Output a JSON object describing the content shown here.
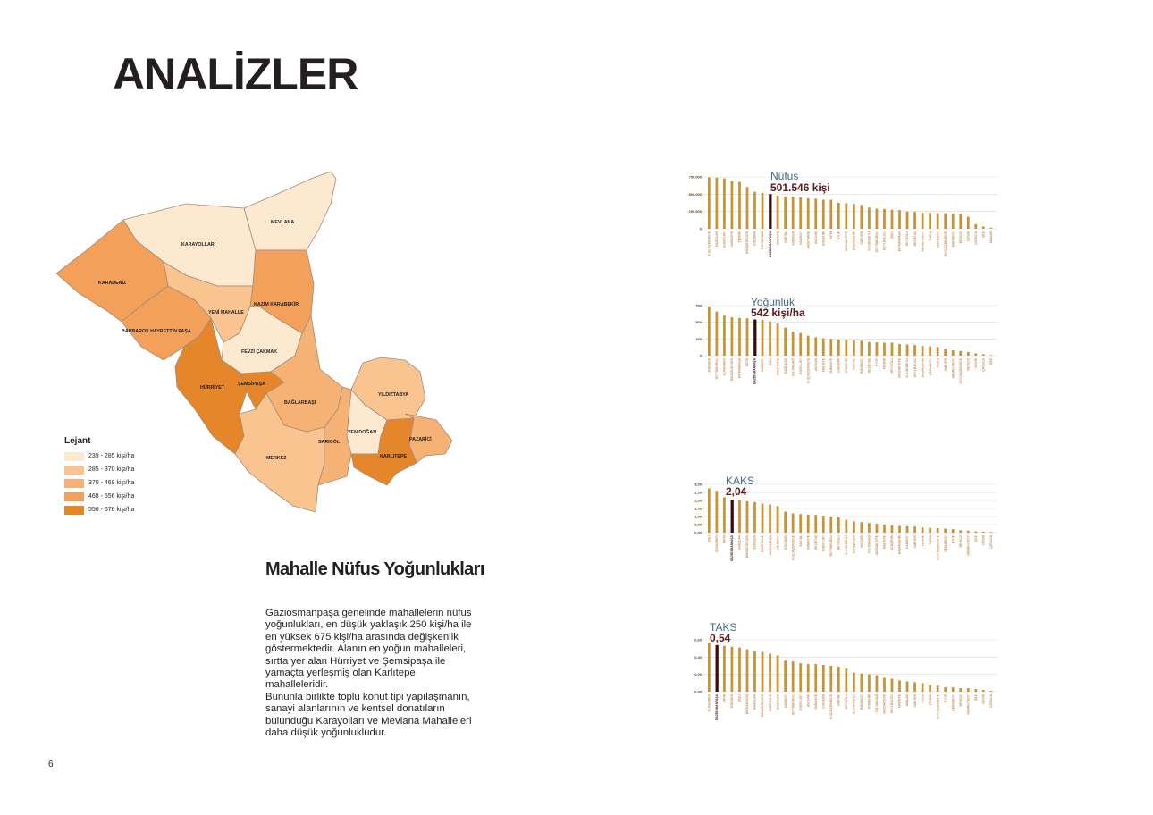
{
  "page": {
    "title": "ANALİZLER",
    "page_number": "6"
  },
  "text_section": {
    "heading": "Mahalle Nüfus Yoğunlukları",
    "paragraph1": "Gaziosmanpaşa genelinde mahallelerin nüfus yoğunlukları, en düşük yaklaşık 250 kişi/ha ile en yüksek 675 kişi/ha arasında değişkenlik göstermektedir. Alanın en yoğun mahalleleri, sırtta yer alan Hürriyet ve Şemsipaşa ile yamaçta yerleşmiş olan Karlıtepe mahalleleridir.",
    "paragraph2": "Bununla birlikte toplu konut tipi yapılaşmanın, sanayi alanlarının ve kentsel donatıların bulunduğu Karayolları ve Mevlana Mahalleleri daha düşük yoğunlukludur."
  },
  "map": {
    "districts": [
      {
        "label": "MEVLANA",
        "color": "#fde9d0"
      },
      {
        "label": "KARAYOLLARI",
        "color": "#fde9d0"
      },
      {
        "label": "KARADENİZ",
        "color": "#f3a15a"
      },
      {
        "label": "YENİ MAHALLE",
        "color": "#f9c48f"
      },
      {
        "label": "KAZIM KARABEKİR",
        "color": "#f3a15a"
      },
      {
        "label": "BARBAROS HAYRETTİN PAŞA",
        "color": "#f3a15a"
      },
      {
        "label": "FEVZİ ÇAKMAK",
        "color": "#fde9d0"
      },
      {
        "label": "HÜRRİYET",
        "color": "#e6862a"
      },
      {
        "label": "ŞEMSİPAŞA",
        "color": "#e6862a"
      },
      {
        "label": "BAĞLARBAŞI",
        "color": "#f6b274"
      },
      {
        "label": "YILDIZTABYA",
        "color": "#f9c48f"
      },
      {
        "label": "MERKEZ",
        "color": "#f9c48f"
      },
      {
        "label": "SARIGÖL",
        "color": "#f6b274"
      },
      {
        "label": "YENİDOĞAN",
        "color": "#fde9d0"
      },
      {
        "label": "PAZARİÇİ",
        "color": "#f6b274"
      },
      {
        "label": "KARLITEPE",
        "color": "#e6862a"
      }
    ]
  },
  "legend": {
    "title": "Lejant",
    "items": [
      {
        "label": "239 - 285 kişi/ha",
        "color": "#fde9d0"
      },
      {
        "label": "285 - 370 kişi/ha",
        "color": "#f9c48f"
      },
      {
        "label": "370 - 468 kişi/ha",
        "color": "#f6b274"
      },
      {
        "label": "468 - 556 kişi/ha",
        "color": "#f3a15a"
      },
      {
        "label": "556 - 676 kişi/ha",
        "color": "#e6862a"
      }
    ]
  },
  "colors": {
    "bar": "#c9922e",
    "highlight_bar": "#3a0d0d",
    "category_text": "#b5651d",
    "gridline": "#d9d9d9"
  },
  "chart_data": [
    {
      "type": "bar",
      "label": "Nüfus",
      "value_label": "501.546 kişi",
      "yticks": [
        "750.000",
        "500.000",
        "250.000",
        "0"
      ],
      "ylim": [
        0,
        750000
      ],
      "highlight": "GAZİOSMANPAŞA",
      "categories": [
        "KÜÇÜKÇEKMECE",
        "BAĞCILAR",
        "ESENYURT",
        "ÜMRANİYE",
        "PENDİK",
        "BAHÇELİEVLER",
        "ÜSKÜDAR",
        "SULTANGAZİ",
        "GAZİOSMANPAŞA",
        "MALTEPE",
        "KARTAL",
        "ESENLER",
        "KADIKÖY",
        "KAĞITHANE",
        "AVCILAR",
        "ATAŞEHİR",
        "FATİH",
        "EYÜP",
        "SANCAKTEPE",
        "BAŞAKŞEHİR",
        "SARIYER",
        "SULTANBEYLİ",
        "ZEYTİNBURNU",
        "BEYLİKDÜZÜ",
        "ŞİŞLİ",
        "BAYRAMPAŞA",
        "BEYOĞLU",
        "BEŞİKTAŞ",
        "ARNAVUTKÖY",
        "TUZLA",
        "ÇEKMEKÖY",
        "BÜYÜKÇEKMECE",
        "BAKIRKÖY",
        "BEYKOZ",
        "SİLİVRİ",
        "ÇATALCA",
        "ŞİLE",
        "ADALAR"
      ],
      "values": [
        745000,
        740000,
        730000,
        690000,
        680000,
        605000,
        535000,
        520000,
        501546,
        480000,
        465000,
        465000,
        455000,
        440000,
        435000,
        420000,
        420000,
        375000,
        370000,
        360000,
        345000,
        305000,
        290000,
        285000,
        275000,
        270000,
        250000,
        245000,
        230000,
        230000,
        225000,
        225000,
        220000,
        210000,
        175000,
        65000,
        32000,
        15000
      ]
    },
    {
      "type": "bar",
      "label": "Yoğunluk",
      "value_label": "542 kişi/ha",
      "yticks": [
        "750",
        "500",
        "250",
        "0"
      ],
      "ylim": [
        0,
        750
      ],
      "highlight": "GAZİOSMANPAŞA",
      "categories": [
        "ESENLER",
        "ZEYTİNBURNU",
        "GÜNGÖREN",
        "BAHÇELİEVLER",
        "BAYRAMPAŞA",
        "FATİH",
        "GAZİOSMANPAŞA",
        "KADIKÖY",
        "ŞİŞLİ",
        "KAĞITHANE",
        "BAĞCILAR",
        "SULTANGAZİ",
        "ESENYURT",
        "KÜÇÜKÇEKMECE",
        "AVCILAR",
        "MALTEPE",
        "ÜMRANİYE",
        "ÜSKÜDAR",
        "ATAŞEHİR",
        "KARTAL",
        "BAKIRKÖY",
        "BEŞİKTAŞ",
        "EYÜP",
        "PENDİK",
        "BEYOĞLU",
        "SANCAKTEPE",
        "SULTANBEYLİ",
        "BEYLİKDÜZÜ",
        "BAŞAKŞEHİR",
        "ÇEKMEKÖY",
        "TUZLA",
        "SARIYER",
        "ARNAVUTKÖY",
        "BÜYÜKÇEKMECE",
        "BEYKOZ",
        "SİLİVRİ",
        "ÇATALCA",
        "ŞİLE"
      ],
      "values": [
        735,
        660,
        600,
        575,
        565,
        560,
        542,
        540,
        515,
        480,
        420,
        360,
        340,
        300,
        275,
        260,
        250,
        240,
        235,
        230,
        225,
        205,
        200,
        195,
        195,
        175,
        165,
        160,
        145,
        140,
        130,
        100,
        80,
        70,
        55,
        35,
        20,
        8
      ]
    },
    {
      "type": "bar",
      "label": "KAKS",
      "value_label": "2,04",
      "yticks": [
        "3,00",
        "2,50",
        "2,00",
        "1,50",
        "1,00",
        "0,50",
        "0,00"
      ],
      "ylim": [
        0,
        3
      ],
      "highlight": "GAZİOSMANPAŞA",
      "categories": [
        "ŞİŞLİ",
        "GÜNGÖREN",
        "FATİH",
        "GAZİOSMANPAŞA",
        "BAĞCILAR",
        "BAHÇELİEVLER",
        "ESENLER",
        "KAĞITHANE",
        "BAYRAMPAŞA",
        "BAKIRKÖY",
        "ÜSKÜDAR",
        "KÜÇÜKÇEKMECE",
        "KARTAL",
        "ÜMRANİYE",
        "BEŞİKTAŞ",
        "ESENYURT",
        "ZEYTİNBURNU",
        "BEYOĞLU",
        "SULTANBEYLİ",
        "BAHÇEVLER",
        "AVCILAR",
        "SULTANGAZİ",
        "SANCAKTEPE",
        "MALTEPE",
        "ATAŞEHİR",
        "BAŞAKŞEHİR",
        "KADIKÖY",
        "SARIYER",
        "PENDİK",
        "TUZLA",
        "BÜYÜKÇEKMECE",
        "ÇEKMEKÖY",
        "EYÜP",
        "BEYKOZ",
        "ARNAVUTKÖY",
        "ŞİLE",
        "SİLİVRİ",
        "ÇATALCA"
      ],
      "values": [
        2.75,
        2.6,
        2.2,
        2.04,
        2.02,
        1.95,
        1.9,
        1.8,
        1.75,
        1.65,
        1.3,
        1.2,
        1.15,
        1.12,
        1.1,
        1.05,
        1.0,
        0.95,
        0.8,
        0.7,
        0.65,
        0.6,
        0.55,
        0.5,
        0.45,
        0.42,
        0.4,
        0.38,
        0.32,
        0.3,
        0.28,
        0.25,
        0.22,
        0.15,
        0.12,
        0.08,
        0.06,
        0.04
      ]
    },
    {
      "type": "bar",
      "label": "TAKS",
      "value_label": "0,54",
      "yticks": [
        "0,60",
        "0,40",
        "0,20",
        "0,00"
      ],
      "ylim": [
        0,
        0.6
      ],
      "highlight": "GAZİOSMANPAŞA",
      "categories": [
        "GÜNGÖREN",
        "GAZİOSMANPAŞA",
        "FATİH",
        "ESENLER",
        "ŞİŞLİ",
        "BAYRAMPAŞA",
        "BAĞCILAR",
        "BAHÇELİEVLER",
        "KAĞITHANE",
        "BAĞCILAR",
        "KADIKÖY",
        "ZEYTİNBURNU",
        "ESENYURT",
        "AVCILAR",
        "ÜMRANİYE",
        "ÜSKÜDAR",
        "KÜÇÜKÇEKMECE",
        "KARTAL",
        "BEYOĞLU",
        "SULTANBEYLİ",
        "BAKIRKÖY",
        "ATAŞEHİR",
        "SULTANGAZİ",
        "SANCAKTEPE",
        "BEYLİKDÜZÜ",
        "MALTEPE",
        "ADALAR",
        "SARIYER",
        "TUZLA",
        "PENDİK",
        "BÜYÜKÇEKMECE",
        "EYÜP",
        "ÇEKMEKÖY",
        "BEYKOZ",
        "ARNAVUTKÖY",
        "ŞİLE",
        "SİLİVRİ",
        "ÇATALCA"
      ],
      "values": [
        0.57,
        0.54,
        0.53,
        0.52,
        0.51,
        0.49,
        0.47,
        0.46,
        0.44,
        0.42,
        0.36,
        0.35,
        0.33,
        0.32,
        0.32,
        0.31,
        0.3,
        0.29,
        0.27,
        0.22,
        0.21,
        0.2,
        0.19,
        0.16,
        0.15,
        0.13,
        0.12,
        0.11,
        0.1,
        0.08,
        0.07,
        0.05,
        0.05,
        0.04,
        0.04,
        0.03,
        0.02,
        0.01
      ]
    }
  ]
}
